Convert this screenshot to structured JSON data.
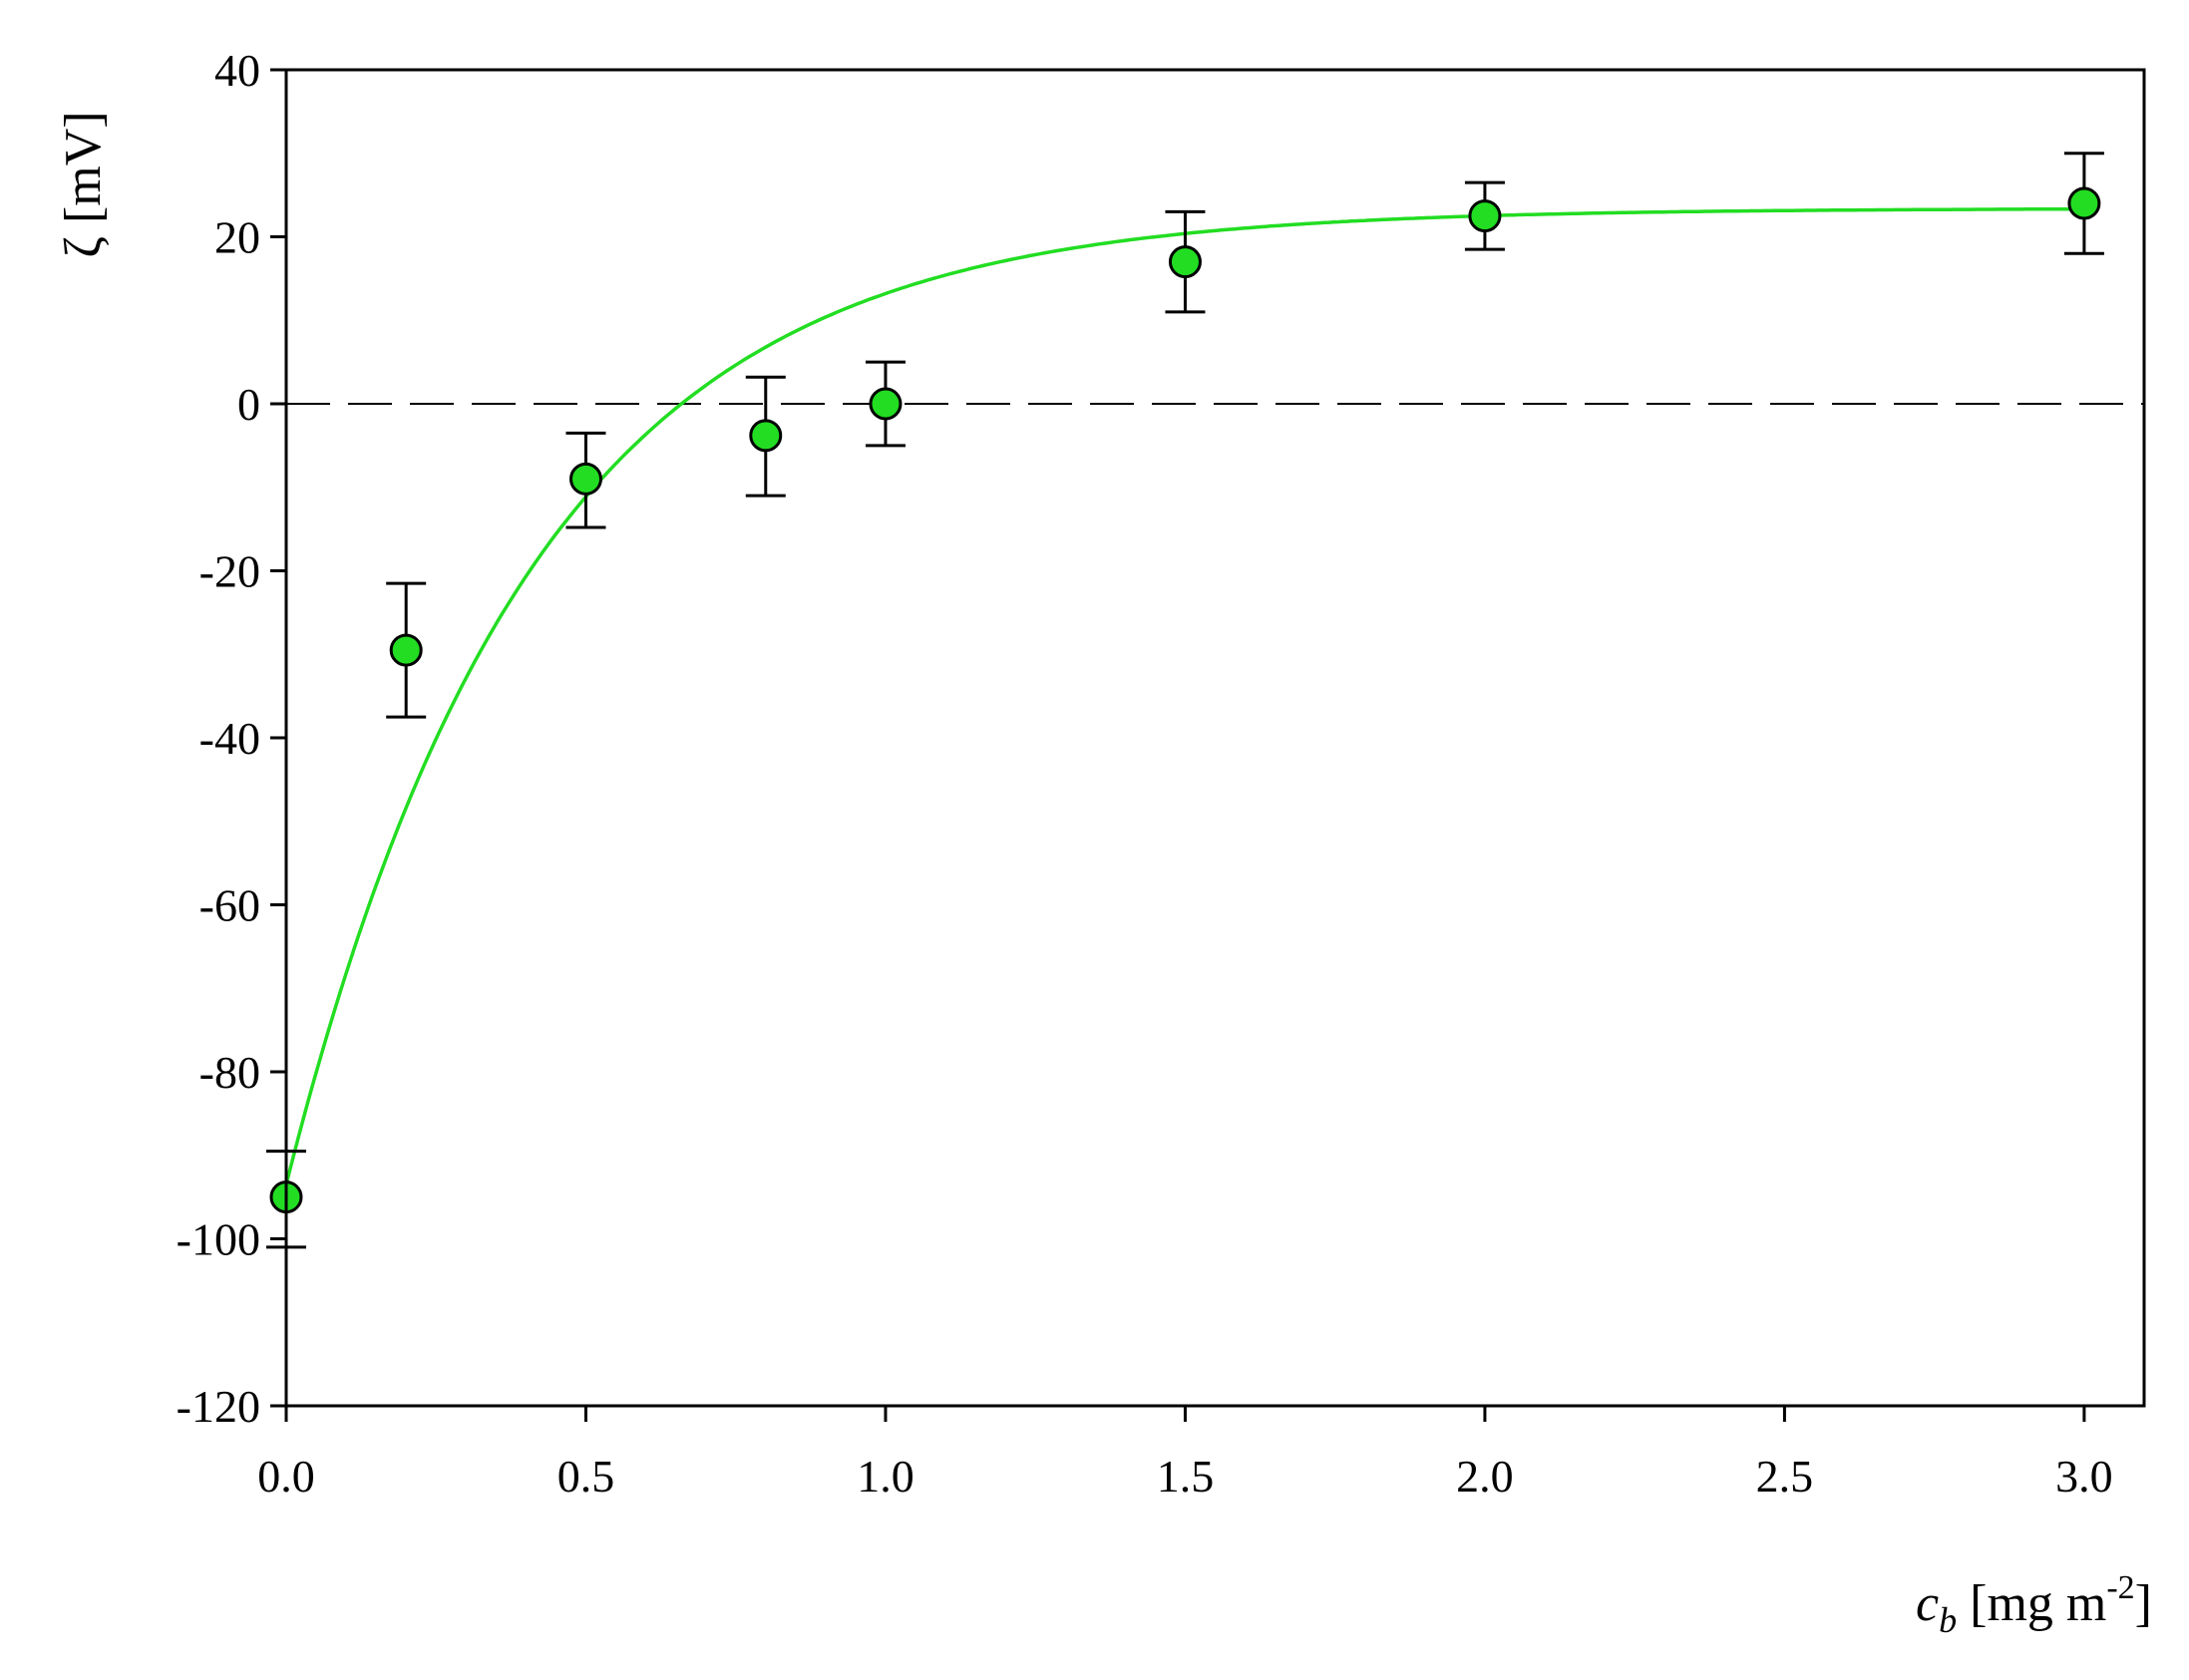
{
  "chart_data": {
    "type": "scatter",
    "title": "",
    "xlabel": {
      "symbol": "c",
      "subscript": "b",
      "unit_pre": " [mg m",
      "unit_sup": "-2",
      "unit_post": "]"
    },
    "ylabel": "ζ [mV]",
    "xlim": [
      0,
      3.1
    ],
    "ylim": [
      -120,
      40
    ],
    "xticks": [
      0.0,
      0.5,
      1.0,
      1.5,
      2.0,
      2.5,
      3.0
    ],
    "xtick_labels": [
      "0.0",
      "0.5",
      "1.0",
      "1.5",
      "2.0",
      "2.5",
      "3.0"
    ],
    "yticks": [
      -120,
      -100,
      -80,
      -60,
      -40,
      -20,
      0,
      20,
      40
    ],
    "ytick_labels": [
      "-120",
      "-100",
      "-80",
      "-60",
      "-40",
      "-20",
      "0",
      "20",
      "40"
    ],
    "grid": false,
    "reference_line": {
      "y": 0,
      "style": "dashed",
      "color": "#000000"
    },
    "series": [
      {
        "kind": "points",
        "color": "#22dd22",
        "x": [
          0.0,
          0.2,
          0.5,
          0.8,
          1.0,
          1.5,
          2.0,
          3.0
        ],
        "y": [
          -95,
          -29.5,
          -9,
          -3.8,
          0,
          17,
          22.5,
          24
        ],
        "err_low": [
          -101,
          -37.5,
          -14.8,
          -11,
          -5,
          11,
          18.5,
          18
        ],
        "err_high": [
          -89.5,
          -21.5,
          -3.5,
          3.2,
          5,
          23,
          26.5,
          30
        ]
      },
      {
        "kind": "fit-curve",
        "color": "#22dd22",
        "model": "y = a + b*exp(-x/t)",
        "params": {
          "a": 23.4,
          "b": -116.9,
          "t": 0.41
        }
      }
    ]
  }
}
